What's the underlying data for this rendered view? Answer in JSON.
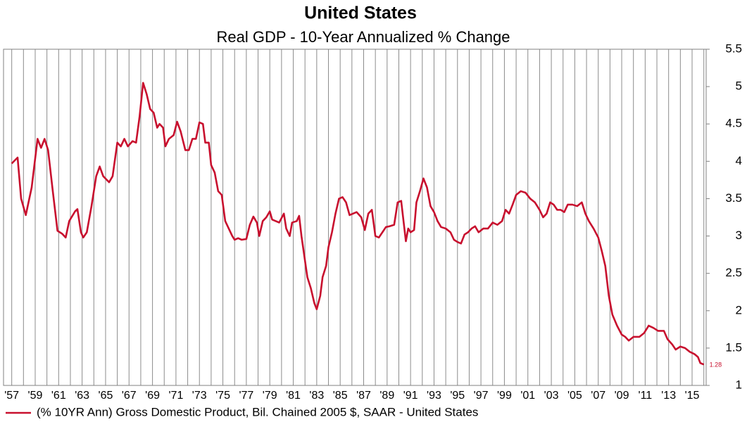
{
  "chart_data": {
    "type": "line",
    "title": "United States",
    "subtitle": "Real GDP - 10-Year Annualized % Change",
    "x": [
      1957.0,
      1957.5,
      1957.8,
      1958.2,
      1958.7,
      1959.2,
      1959.5,
      1959.8,
      1960.1,
      1960.5,
      1960.9,
      1961.3,
      1961.6,
      1961.9,
      1962.4,
      1962.6,
      1962.9,
      1963.1,
      1963.4,
      1963.8,
      1964.2,
      1964.5,
      1964.8,
      1965.3,
      1965.6,
      1966.0,
      1966.3,
      1966.6,
      1966.9,
      1967.3,
      1967.6,
      1967.9,
      1968.2,
      1968.5,
      1968.8,
      1969.1,
      1969.4,
      1969.6,
      1969.9,
      1970.1,
      1970.4,
      1970.8,
      1971.1,
      1971.4,
      1971.8,
      1972.1,
      1972.4,
      1972.7,
      1973.0,
      1973.3,
      1973.5,
      1973.8,
      1974.0,
      1974.3,
      1974.6,
      1974.9,
      1975.2,
      1975.5,
      1975.8,
      1976.0,
      1976.3,
      1976.6,
      1977.0,
      1977.3,
      1977.6,
      1977.9,
      1978.1,
      1978.4,
      1978.7,
      1979.0,
      1979.2,
      1979.5,
      1979.8,
      1980.2,
      1980.4,
      1980.7,
      1980.9,
      1981.3,
      1981.5,
      1981.7,
      1981.9,
      1982.2,
      1982.5,
      1982.8,
      1983.0,
      1983.3,
      1983.5,
      1983.8,
      1984.0,
      1984.3,
      1984.6,
      1984.9,
      1985.2,
      1985.5,
      1985.8,
      1986.1,
      1986.4,
      1986.8,
      1987.1,
      1987.4,
      1987.7,
      1988.0,
      1988.3,
      1988.6,
      1988.9,
      1989.2,
      1989.6,
      1989.9,
      1990.2,
      1990.4,
      1990.6,
      1990.8,
      1991.0,
      1991.3,
      1991.5,
      1991.8,
      1992.1,
      1992.4,
      1992.7,
      1993.0,
      1993.3,
      1993.6,
      1994.0,
      1994.4,
      1994.7,
      1995.0,
      1995.3,
      1995.6,
      1995.9,
      1996.2,
      1996.5,
      1996.8,
      1997.2,
      1997.6,
      1998.0,
      1998.4,
      1998.8,
      1999.1,
      1999.4,
      1999.7,
      2000.0,
      2000.4,
      2000.8,
      2001.2,
      2001.6,
      2002.0,
      2002.3,
      2002.6,
      2002.9,
      2003.2,
      2003.5,
      2003.8,
      2004.1,
      2004.4,
      2004.8,
      2005.2,
      2005.6,
      2005.9,
      2006.2,
      2006.6,
      2007.0,
      2007.3,
      2007.6,
      2007.9,
      2008.2,
      2008.6,
      2009.0,
      2009.3,
      2009.6,
      2010.0,
      2010.5,
      2010.9,
      2011.3,
      2011.7,
      2012.1,
      2012.6,
      2012.9,
      2013.3,
      2013.6,
      2014.0,
      2014.4,
      2014.8,
      2015.2,
      2015.5,
      2015.7,
      2016.0
    ],
    "series": [
      {
        "name": "(% 10YR Ann) Gross Domestic Product, Bil. Chained 2005 $, SAAR - United States",
        "color": "#c8102e",
        "values": [
          3.97,
          4.05,
          3.5,
          3.28,
          3.65,
          4.3,
          4.18,
          4.3,
          4.15,
          3.6,
          3.07,
          3.03,
          2.98,
          3.2,
          3.33,
          3.36,
          3.05,
          2.98,
          3.05,
          3.4,
          3.8,
          3.93,
          3.8,
          3.72,
          3.8,
          4.25,
          4.2,
          4.3,
          4.2,
          4.27,
          4.25,
          4.6,
          5.05,
          4.9,
          4.7,
          4.65,
          4.45,
          4.5,
          4.45,
          4.2,
          4.3,
          4.35,
          4.53,
          4.4,
          4.15,
          4.15,
          4.3,
          4.3,
          4.52,
          4.5,
          4.25,
          4.25,
          3.95,
          3.85,
          3.6,
          3.55,
          3.2,
          3.1,
          3.0,
          2.95,
          2.97,
          2.95,
          2.96,
          3.15,
          3.26,
          3.18,
          3.0,
          3.2,
          3.25,
          3.33,
          3.22,
          3.2,
          3.18,
          3.3,
          3.1,
          3.0,
          3.18,
          3.2,
          3.27,
          3.0,
          2.78,
          2.45,
          2.3,
          2.1,
          2.02,
          2.2,
          2.45,
          2.6,
          2.85,
          3.05,
          3.3,
          3.5,
          3.52,
          3.45,
          3.28,
          3.3,
          3.32,
          3.25,
          3.08,
          3.3,
          3.35,
          3.0,
          2.98,
          3.05,
          3.12,
          3.13,
          3.15,
          3.45,
          3.47,
          3.2,
          2.93,
          3.1,
          3.05,
          3.08,
          3.45,
          3.6,
          3.77,
          3.65,
          3.4,
          3.32,
          3.2,
          3.12,
          3.1,
          3.05,
          2.95,
          2.92,
          2.9,
          3.02,
          3.05,
          3.1,
          3.13,
          3.05,
          3.1,
          3.1,
          3.18,
          3.15,
          3.2,
          3.35,
          3.3,
          3.42,
          3.55,
          3.6,
          3.58,
          3.5,
          3.45,
          3.35,
          3.25,
          3.3,
          3.45,
          3.42,
          3.35,
          3.35,
          3.32,
          3.42,
          3.42,
          3.4,
          3.45,
          3.3,
          3.2,
          3.1,
          2.98,
          2.8,
          2.6,
          2.2,
          1.95,
          1.8,
          1.68,
          1.65,
          1.6,
          1.65,
          1.65,
          1.7,
          1.8,
          1.77,
          1.73,
          1.73,
          1.62,
          1.55,
          1.48,
          1.52,
          1.5,
          1.45,
          1.42,
          1.38,
          1.3,
          1.28
        ]
      }
    ],
    "xlim": [
      1956.3,
      2016.2
    ],
    "xticks": [
      {
        "value": 1957,
        "label": "'57"
      },
      {
        "value": 1959,
        "label": "'59"
      },
      {
        "value": 1961,
        "label": "'61"
      },
      {
        "value": 1963,
        "label": "'63"
      },
      {
        "value": 1965,
        "label": "'65"
      },
      {
        "value": 1967,
        "label": "'67"
      },
      {
        "value": 1969,
        "label": "'69"
      },
      {
        "value": 1971,
        "label": "'71"
      },
      {
        "value": 1973,
        "label": "'73"
      },
      {
        "value": 1975,
        "label": "'75"
      },
      {
        "value": 1977,
        "label": "'77"
      },
      {
        "value": 1979,
        "label": "'79"
      },
      {
        "value": 1981,
        "label": "'81"
      },
      {
        "value": 1983,
        "label": "'83"
      },
      {
        "value": 1985,
        "label": "'85"
      },
      {
        "value": 1987,
        "label": "'87"
      },
      {
        "value": 1989,
        "label": "'89"
      },
      {
        "value": 1991,
        "label": "'91"
      },
      {
        "value": 1993,
        "label": "'93"
      },
      {
        "value": 1995,
        "label": "'95"
      },
      {
        "value": 1997,
        "label": "'97"
      },
      {
        "value": 1999,
        "label": "'99"
      },
      {
        "value": 2001,
        "label": "'01"
      },
      {
        "value": 2003,
        "label": "'03"
      },
      {
        "value": 2005,
        "label": "'05"
      },
      {
        "value": 2007,
        "label": "'07"
      },
      {
        "value": 2009,
        "label": "'09"
      },
      {
        "value": 2011,
        "label": "'11"
      },
      {
        "value": 2013,
        "label": "'13"
      },
      {
        "value": 2015,
        "label": "'15"
      }
    ],
    "x_minor_ticks": [
      1958,
      1960,
      1962,
      1964,
      1966,
      1968,
      1970,
      1972,
      1974,
      1976,
      1978,
      1980,
      1982,
      1984,
      1986,
      1988,
      1990,
      1992,
      1994,
      1996,
      1998,
      2000,
      2002,
      2004,
      2006,
      2008,
      2010,
      2012,
      2014,
      2016
    ],
    "ylim": [
      1,
      5.5
    ],
    "yticks": [
      1,
      1.5,
      2,
      2.5,
      3,
      3.5,
      4,
      4.5,
      5,
      5.5
    ],
    "y_axis_side": "right",
    "grid": "x",
    "legend": "bottom-left",
    "last_value_label": true
  }
}
